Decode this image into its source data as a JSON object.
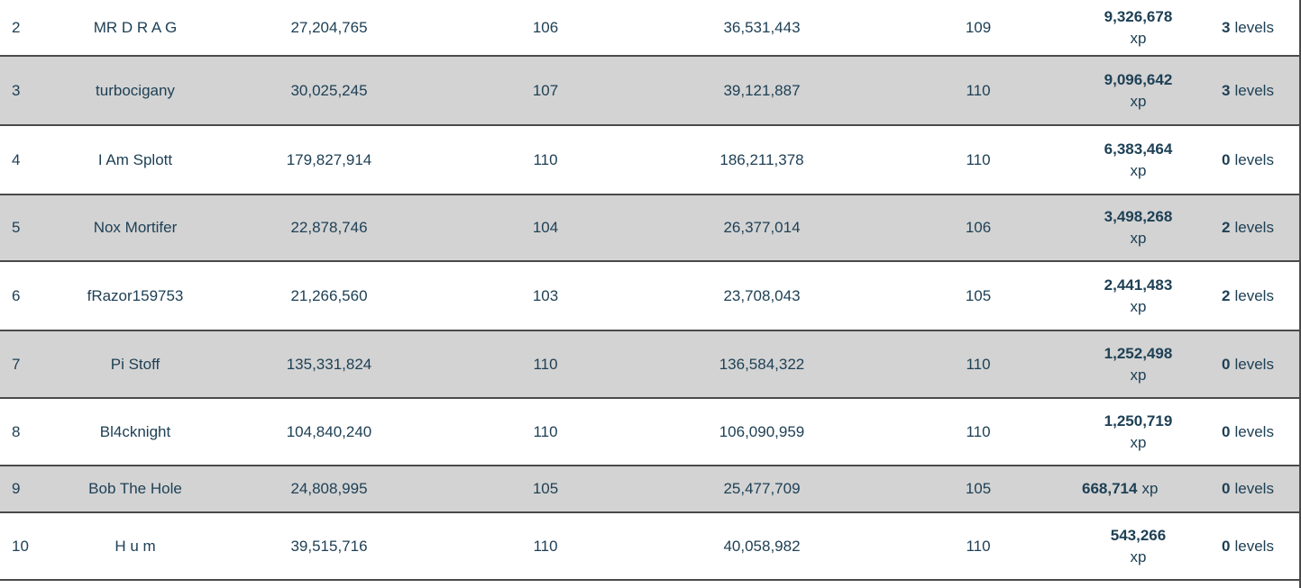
{
  "table": {
    "xp_suffix": "xp",
    "levels_suffix": "levels",
    "text_color": "#1e4055",
    "stripe_color": "#d3d3d3",
    "border_color": "#4a4a4a",
    "columns": [
      "rank",
      "player_name",
      "start_xp",
      "start_level",
      "end_xp",
      "end_level",
      "gained_xp",
      "levels_gained"
    ],
    "rows": [
      {
        "rank": "2",
        "name": "MR D R A G",
        "start_xp": "27,204,765",
        "start_level": "106",
        "end_xp": "36,531,443",
        "end_level": "109",
        "gained_xp": "9,326,678",
        "levels_gained": "3",
        "xp_same_line": false
      },
      {
        "rank": "3",
        "name": "turbocigany",
        "start_xp": "30,025,245",
        "start_level": "107",
        "end_xp": "39,121,887",
        "end_level": "110",
        "gained_xp": "9,096,642",
        "levels_gained": "3",
        "xp_same_line": false
      },
      {
        "rank": "4",
        "name": "I Am Splott",
        "start_xp": "179,827,914",
        "start_level": "110",
        "end_xp": "186,211,378",
        "end_level": "110",
        "gained_xp": "6,383,464",
        "levels_gained": "0",
        "xp_same_line": false
      },
      {
        "rank": "5",
        "name": "Nox Mortifer",
        "start_xp": "22,878,746",
        "start_level": "104",
        "end_xp": "26,377,014",
        "end_level": "106",
        "gained_xp": "3,498,268",
        "levels_gained": "2",
        "xp_same_line": false
      },
      {
        "rank": "6",
        "name": "fRazor159753",
        "start_xp": "21,266,560",
        "start_level": "103",
        "end_xp": "23,708,043",
        "end_level": "105",
        "gained_xp": "2,441,483",
        "levels_gained": "2",
        "xp_same_line": false
      },
      {
        "rank": "7",
        "name": "Pi Stoff",
        "start_xp": "135,331,824",
        "start_level": "110",
        "end_xp": "136,584,322",
        "end_level": "110",
        "gained_xp": "1,252,498",
        "levels_gained": "0",
        "xp_same_line": false
      },
      {
        "rank": "8",
        "name": "Bl4cknight",
        "start_xp": "104,840,240",
        "start_level": "110",
        "end_xp": "106,090,959",
        "end_level": "110",
        "gained_xp": "1,250,719",
        "levels_gained": "0",
        "xp_same_line": false
      },
      {
        "rank": "9",
        "name": "Bob The Hole",
        "start_xp": "24,808,995",
        "start_level": "105",
        "end_xp": "25,477,709",
        "end_level": "105",
        "gained_xp": "668,714",
        "levels_gained": "0",
        "xp_same_line": true
      },
      {
        "rank": "10",
        "name": "H u m",
        "start_xp": "39,515,716",
        "start_level": "110",
        "end_xp": "40,058,982",
        "end_level": "110",
        "gained_xp": "543,266",
        "levels_gained": "0",
        "xp_same_line": false
      }
    ]
  }
}
